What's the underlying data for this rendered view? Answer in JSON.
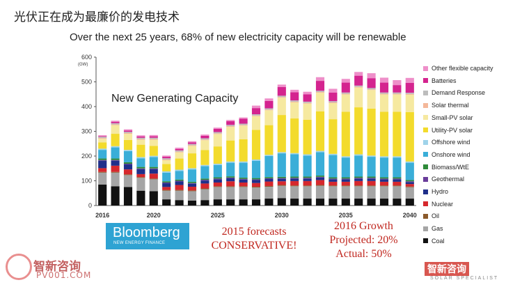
{
  "slide": {
    "title": "光伏正在成为最廉价的发电技术"
  },
  "chart_data": {
    "type": "bar",
    "title": "Over the next 25 years, 68% of new electricity capacity will be renewable",
    "subtitle": "New Generating Capacity",
    "ylabel": "(GW)",
    "xlabel": "",
    "ylim": [
      0,
      600
    ],
    "yticks": [
      0,
      100,
      200,
      300,
      400,
      500,
      600
    ],
    "xticks": [
      "2016",
      "2020",
      "2025",
      "2030",
      "2035",
      "2040"
    ],
    "categories": [
      "2016",
      "2017",
      "2018",
      "2019",
      "2020",
      "2021",
      "2022",
      "2023",
      "2024",
      "2025",
      "2026",
      "2027",
      "2028",
      "2029",
      "2030",
      "2031",
      "2032",
      "2033",
      "2034",
      "2035",
      "2036",
      "2037",
      "2038",
      "2039",
      "2040"
    ],
    "stacked": true,
    "legend_position": "right",
    "series": [
      {
        "name": "Coal",
        "color": "#111111",
        "values": [
          85,
          78,
          75,
          60,
          58,
          25,
          22,
          20,
          22,
          25,
          25,
          25,
          25,
          28,
          30,
          28,
          28,
          28,
          28,
          28,
          28,
          28,
          28,
          28,
          28
        ]
      },
      {
        "name": "Gas",
        "color": "#a5a5a5",
        "values": [
          48,
          55,
          48,
          52,
          48,
          35,
          38,
          38,
          44,
          50,
          50,
          50,
          48,
          48,
          50,
          50,
          50,
          52,
          50,
          50,
          50,
          50,
          50,
          50,
          46
        ]
      },
      {
        "name": "Oil",
        "color": "#8b5a2b",
        "values": [
          3,
          3,
          3,
          3,
          3,
          3,
          3,
          3,
          3,
          3,
          3,
          3,
          3,
          3,
          3,
          3,
          3,
          3,
          3,
          3,
          3,
          3,
          3,
          3,
          3
        ]
      },
      {
        "name": "Nuclear",
        "color": "#d6282d",
        "values": [
          15,
          25,
          20,
          12,
          20,
          12,
          20,
          15,
          20,
          15,
          20,
          15,
          15,
          18,
          15,
          18,
          18,
          20,
          15,
          15,
          18,
          18,
          15,
          15,
          10
        ]
      },
      {
        "name": "Hydro",
        "color": "#1f2f8a",
        "values": [
          30,
          20,
          20,
          20,
          18,
          15,
          14,
          12,
          12,
          13,
          12,
          12,
          12,
          10,
          10,
          10,
          10,
          10,
          10,
          10,
          10,
          10,
          10,
          10,
          8
        ]
      },
      {
        "name": "Geothermal",
        "color": "#6a3d9a",
        "values": [
          3,
          3,
          3,
          3,
          3,
          3,
          3,
          3,
          3,
          3,
          3,
          3,
          3,
          3,
          3,
          3,
          3,
          3,
          3,
          3,
          3,
          3,
          3,
          3,
          3
        ]
      },
      {
        "name": "Biomass/WtE",
        "color": "#2e8b3a",
        "values": [
          6,
          6,
          6,
          6,
          6,
          5,
          5,
          5,
          5,
          5,
          5,
          5,
          5,
          5,
          5,
          5,
          5,
          5,
          5,
          5,
          5,
          5,
          5,
          5,
          5
        ]
      },
      {
        "name": "Onshore wind",
        "color": "#3aaed8",
        "values": [
          35,
          45,
          45,
          35,
          40,
          35,
          35,
          50,
          50,
          50,
          55,
          60,
          70,
          85,
          95,
          90,
          85,
          95,
          90,
          80,
          85,
          80,
          80,
          80,
          70
        ]
      },
      {
        "name": "Offshore wind",
        "color": "#9fd3ea",
        "values": [
          5,
          5,
          5,
          5,
          5,
          5,
          5,
          5,
          5,
          5,
          5,
          5,
          5,
          5,
          5,
          5,
          5,
          5,
          5,
          5,
          5,
          5,
          5,
          5,
          5
        ]
      },
      {
        "name": "Utility-PV solar",
        "color": "#f3db2c",
        "values": [
          25,
          50,
          40,
          50,
          40,
          30,
          45,
          60,
          60,
          70,
          85,
          90,
          120,
          120,
          150,
          140,
          140,
          160,
          140,
          180,
          190,
          190,
          180,
          180,
          200
        ]
      },
      {
        "name": "Small-PV solar",
        "color": "#f6e9a0",
        "values": [
          15,
          35,
          25,
          20,
          25,
          15,
          25,
          30,
          40,
          50,
          55,
          55,
          55,
          60,
          70,
          65,
          65,
          75,
          65,
          70,
          80,
          75,
          70,
          70,
          70
        ]
      },
      {
        "name": "Solar thermal",
        "color": "#f4b89a",
        "values": [
          3,
          3,
          3,
          3,
          3,
          3,
          3,
          3,
          3,
          3,
          3,
          3,
          3,
          3,
          3,
          3,
          3,
          3,
          3,
          3,
          3,
          3,
          3,
          3,
          3
        ]
      },
      {
        "name": "Demand Response",
        "color": "#bdbdbd",
        "values": [
          5,
          5,
          5,
          5,
          5,
          5,
          5,
          5,
          5,
          5,
          5,
          5,
          5,
          5,
          5,
          5,
          5,
          5,
          5,
          5,
          5,
          5,
          5,
          5,
          5
        ]
      },
      {
        "name": "Batteries",
        "color": "#d4248f",
        "values": [
          3,
          5,
          5,
          5,
          6,
          6,
          6,
          6,
          10,
          13,
          15,
          20,
          25,
          30,
          35,
          33,
          30,
          40,
          35,
          40,
          40,
          40,
          40,
          30,
          40
        ]
      },
      {
        "name": "Other flexible capacity",
        "color": "#ee8fc9",
        "values": [
          3,
          5,
          5,
          5,
          5,
          5,
          5,
          5,
          5,
          5,
          5,
          5,
          10,
          10,
          10,
          10,
          10,
          15,
          15,
          15,
          15,
          20,
          20,
          20,
          20
        ]
      }
    ]
  },
  "logo": {
    "name": "Bloomberg",
    "subtitle": "NEW ENERGY FINANCE"
  },
  "notes": {
    "forecast_line1": "2015 forecasts",
    "forecast_line2": "CONSERVATIVE!",
    "growth_line1": "2016 Growth",
    "growth_line2": "Projected: 20%",
    "growth_line3": "Actual: 50%"
  },
  "watermarks": {
    "left_title": "智新咨询",
    "left_sub": "PV001.COM",
    "right_title": "智新咨询",
    "right_sub": "SOLAR SPECIALIST"
  }
}
